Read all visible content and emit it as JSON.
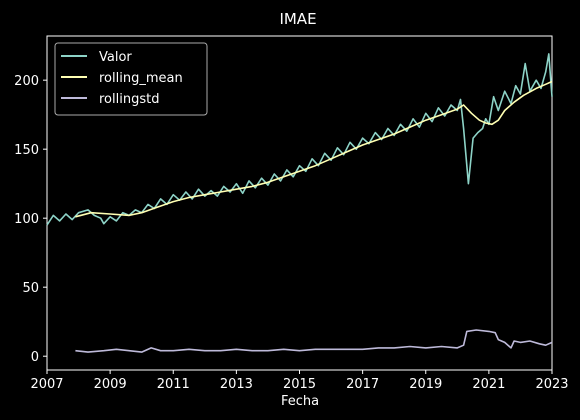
{
  "chart_data": {
    "type": "line",
    "title": "IMAE",
    "xlabel": "Fecha",
    "ylabel": "",
    "xlim": [
      2007.0,
      2023.0
    ],
    "ylim": [
      -10,
      232
    ],
    "x_ticks": [
      2007,
      2009,
      2011,
      2013,
      2015,
      2017,
      2019,
      2021,
      2023
    ],
    "x_tick_labels": [
      "2007",
      "2009",
      "2011",
      "2013",
      "2015",
      "2017",
      "2019",
      "2021",
      "2023"
    ],
    "y_ticks": [
      0,
      50,
      100,
      150,
      200
    ],
    "y_tick_labels": [
      "0",
      "50",
      "100",
      "150",
      "200"
    ],
    "grid": false,
    "legend_position": "top-left",
    "background": "#000000",
    "series": [
      {
        "name": "Valor",
        "color": "#8dd3c7",
        "points": [
          [
            2007.0,
            95
          ],
          [
            2007.2,
            102
          ],
          [
            2007.4,
            98
          ],
          [
            2007.6,
            103
          ],
          [
            2007.8,
            99
          ],
          [
            2008.0,
            104
          ],
          [
            2008.3,
            106
          ],
          [
            2008.5,
            102
          ],
          [
            2008.7,
            100
          ],
          [
            2008.8,
            96
          ],
          [
            2009.0,
            101
          ],
          [
            2009.2,
            98
          ],
          [
            2009.4,
            104
          ],
          [
            2009.6,
            102
          ],
          [
            2009.8,
            106
          ],
          [
            2010.0,
            104
          ],
          [
            2010.2,
            110
          ],
          [
            2010.4,
            107
          ],
          [
            2010.6,
            114
          ],
          [
            2010.8,
            110
          ],
          [
            2011.0,
            117
          ],
          [
            2011.2,
            113
          ],
          [
            2011.4,
            119
          ],
          [
            2011.6,
            114
          ],
          [
            2011.8,
            121
          ],
          [
            2012.0,
            116
          ],
          [
            2012.2,
            120
          ],
          [
            2012.4,
            116
          ],
          [
            2012.6,
            123
          ],
          [
            2012.8,
            119
          ],
          [
            2013.0,
            125
          ],
          [
            2013.2,
            118
          ],
          [
            2013.4,
            127
          ],
          [
            2013.6,
            122
          ],
          [
            2013.8,
            129
          ],
          [
            2014.0,
            124
          ],
          [
            2014.2,
            132
          ],
          [
            2014.4,
            127
          ],
          [
            2014.6,
            135
          ],
          [
            2014.8,
            130
          ],
          [
            2015.0,
            138
          ],
          [
            2015.2,
            134
          ],
          [
            2015.4,
            143
          ],
          [
            2015.6,
            138
          ],
          [
            2015.8,
            147
          ],
          [
            2016.0,
            142
          ],
          [
            2016.2,
            151
          ],
          [
            2016.4,
            146
          ],
          [
            2016.6,
            155
          ],
          [
            2016.8,
            150
          ],
          [
            2017.0,
            158
          ],
          [
            2017.2,
            154
          ],
          [
            2017.4,
            162
          ],
          [
            2017.6,
            157
          ],
          [
            2017.8,
            165
          ],
          [
            2018.0,
            160
          ],
          [
            2018.2,
            168
          ],
          [
            2018.4,
            163
          ],
          [
            2018.6,
            172
          ],
          [
            2018.8,
            166
          ],
          [
            2019.0,
            176
          ],
          [
            2019.2,
            170
          ],
          [
            2019.4,
            180
          ],
          [
            2019.6,
            174
          ],
          [
            2019.8,
            182
          ],
          [
            2020.0,
            178
          ],
          [
            2020.1,
            186
          ],
          [
            2020.2,
            165
          ],
          [
            2020.35,
            125
          ],
          [
            2020.5,
            158
          ],
          [
            2020.65,
            162
          ],
          [
            2020.8,
            165
          ],
          [
            2020.9,
            172
          ],
          [
            2021.0,
            168
          ],
          [
            2021.15,
            188
          ],
          [
            2021.3,
            178
          ],
          [
            2021.5,
            192
          ],
          [
            2021.7,
            183
          ],
          [
            2021.85,
            196
          ],
          [
            2022.0,
            190
          ],
          [
            2022.15,
            212
          ],
          [
            2022.3,
            192
          ],
          [
            2022.5,
            200
          ],
          [
            2022.65,
            194
          ],
          [
            2022.8,
            206
          ],
          [
            2022.9,
            219
          ],
          [
            2023.0,
            188
          ]
        ]
      },
      {
        "name": "rolling_mean",
        "color": "#ffffb3",
        "points": [
          [
            2007.9,
            101
          ],
          [
            2008.4,
            104
          ],
          [
            2009.0,
            103
          ],
          [
            2009.6,
            102
          ],
          [
            2010.0,
            104
          ],
          [
            2010.5,
            108
          ],
          [
            2011.0,
            112
          ],
          [
            2011.5,
            115
          ],
          [
            2012.0,
            117
          ],
          [
            2012.5,
            119
          ],
          [
            2013.0,
            121
          ],
          [
            2013.5,
            123
          ],
          [
            2014.0,
            126
          ],
          [
            2014.5,
            130
          ],
          [
            2015.0,
            134
          ],
          [
            2015.5,
            138
          ],
          [
            2016.0,
            143
          ],
          [
            2016.5,
            148
          ],
          [
            2017.0,
            153
          ],
          [
            2017.5,
            157
          ],
          [
            2018.0,
            161
          ],
          [
            2018.5,
            166
          ],
          [
            2019.0,
            171
          ],
          [
            2019.5,
            175
          ],
          [
            2020.0,
            179
          ],
          [
            2020.2,
            182
          ],
          [
            2020.45,
            176
          ],
          [
            2020.7,
            171
          ],
          [
            2020.9,
            169
          ],
          [
            2021.1,
            168
          ],
          [
            2021.3,
            171
          ],
          [
            2021.5,
            178
          ],
          [
            2021.8,
            184
          ],
          [
            2022.1,
            189
          ],
          [
            2022.5,
            194
          ],
          [
            2022.8,
            197
          ],
          [
            2023.0,
            199
          ]
        ]
      },
      {
        "name": "rollingstd",
        "color": "#bebada",
        "points": [
          [
            2007.9,
            4
          ],
          [
            2008.3,
            3
          ],
          [
            2008.8,
            4
          ],
          [
            2009.2,
            5
          ],
          [
            2009.6,
            4
          ],
          [
            2010.0,
            3
          ],
          [
            2010.3,
            6
          ],
          [
            2010.6,
            4
          ],
          [
            2011.0,
            4
          ],
          [
            2011.5,
            5
          ],
          [
            2012.0,
            4
          ],
          [
            2012.5,
            4
          ],
          [
            2013.0,
            5
          ],
          [
            2013.5,
            4
          ],
          [
            2014.0,
            4
          ],
          [
            2014.5,
            5
          ],
          [
            2015.0,
            4
          ],
          [
            2015.5,
            5
          ],
          [
            2016.0,
            5
          ],
          [
            2016.5,
            5
          ],
          [
            2017.0,
            5
          ],
          [
            2017.5,
            6
          ],
          [
            2018.0,
            6
          ],
          [
            2018.5,
            7
          ],
          [
            2019.0,
            6
          ],
          [
            2019.5,
            7
          ],
          [
            2020.0,
            6
          ],
          [
            2020.2,
            8
          ],
          [
            2020.3,
            18
          ],
          [
            2020.6,
            19
          ],
          [
            2021.0,
            18
          ],
          [
            2021.2,
            17
          ],
          [
            2021.3,
            12
          ],
          [
            2021.5,
            10
          ],
          [
            2021.7,
            6
          ],
          [
            2021.8,
            11
          ],
          [
            2022.0,
            10
          ],
          [
            2022.3,
            11
          ],
          [
            2022.6,
            9
          ],
          [
            2022.8,
            8
          ],
          [
            2023.0,
            10
          ]
        ]
      }
    ]
  }
}
